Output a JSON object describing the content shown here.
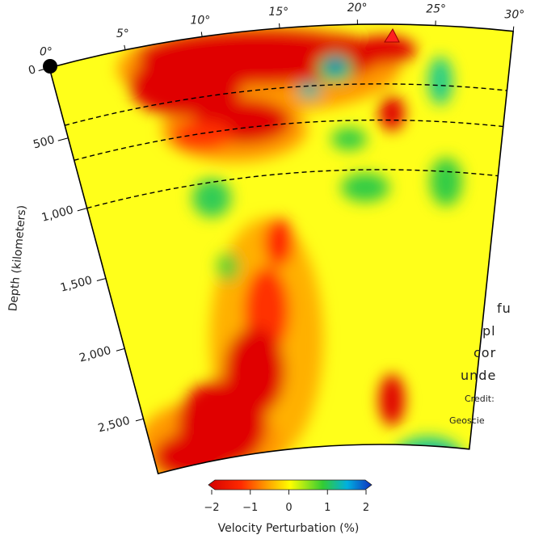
{
  "figure": {
    "longitude_labels": [
      "0°",
      "5°",
      "10°",
      "15°",
      "20°",
      "25°",
      "30°"
    ],
    "depth_axis_title": "Depth (kilometers)",
    "depth_labels": [
      "0",
      "500",
      "1,000",
      "1,500",
      "2,000",
      "2,500"
    ],
    "colorbar_labels": [
      "−2",
      "−1",
      "0",
      "1",
      "2"
    ],
    "colorbar_title": "Velocity Perturbation (%)"
  },
  "caption": {
    "lines": [
      "fu",
      "pl",
      "cor",
      "unde"
    ],
    "credit_lines": [
      "Credit:",
      "Geoscie"
    ]
  }
}
